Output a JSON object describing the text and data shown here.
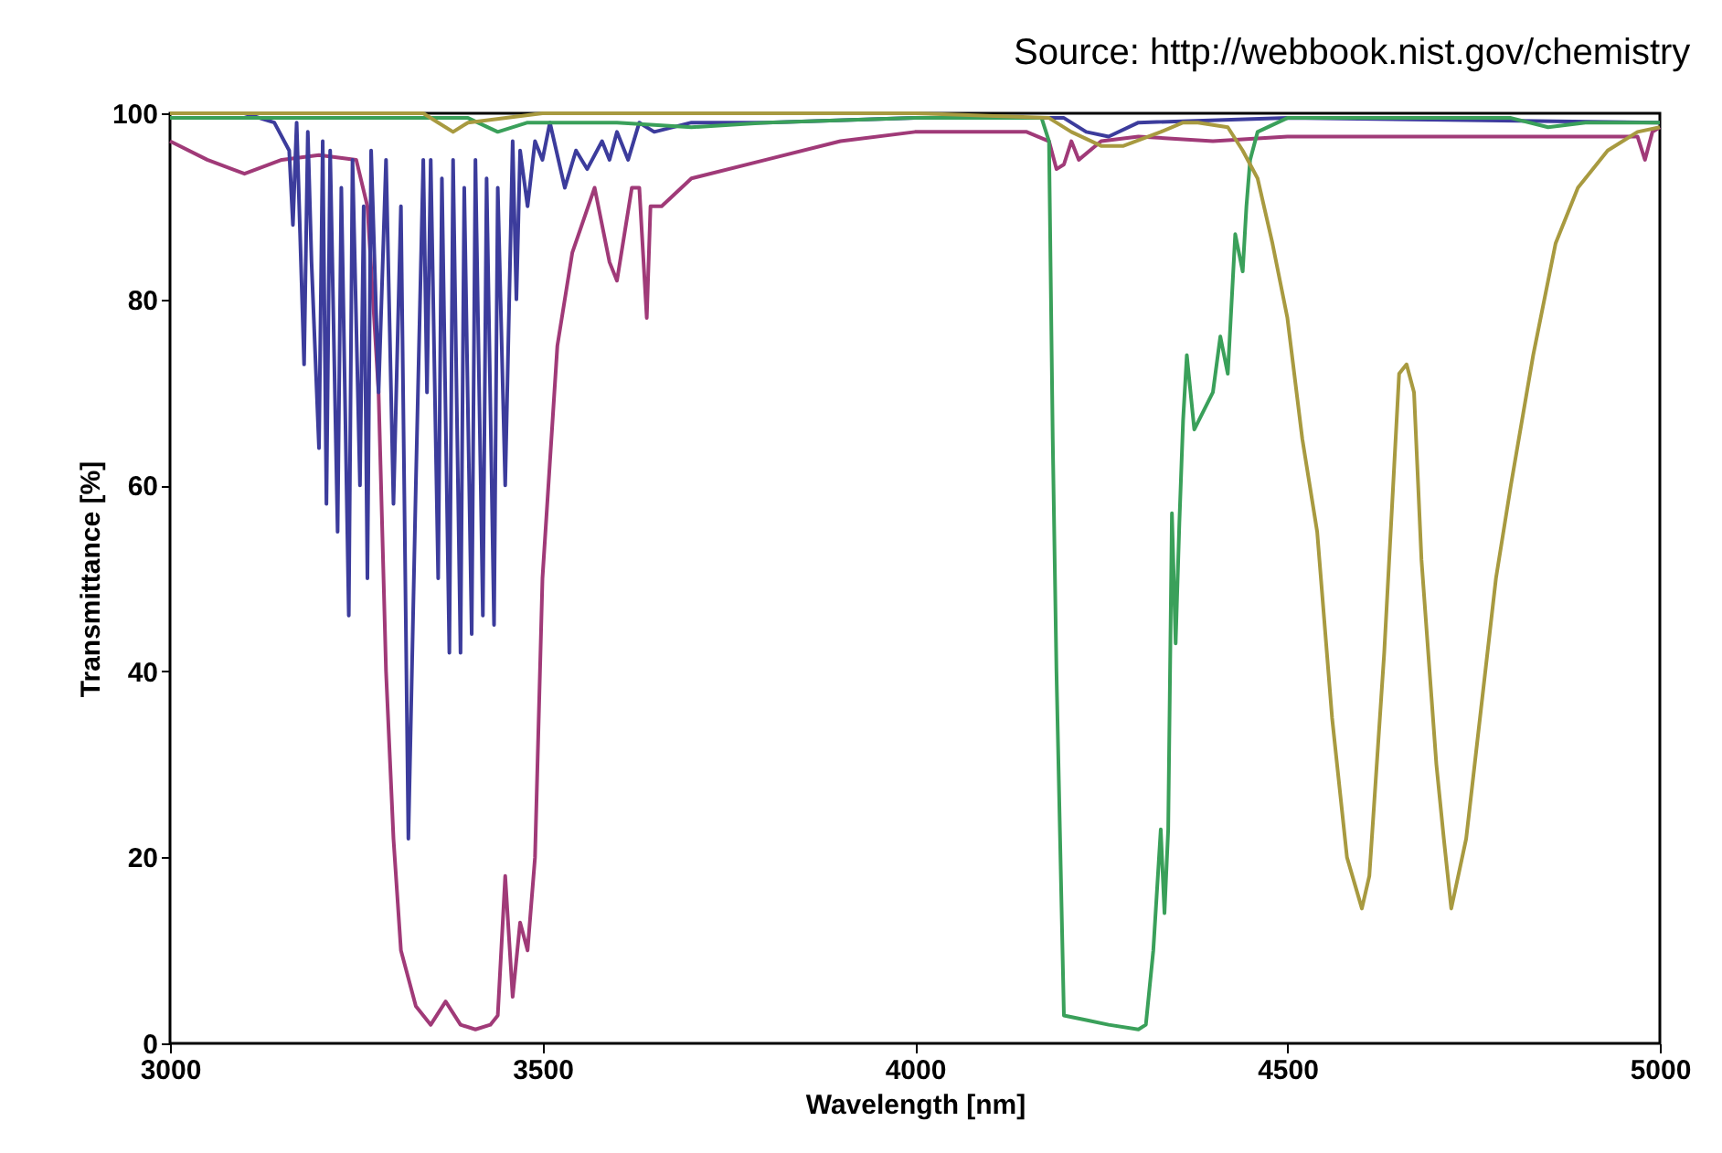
{
  "chart_data": {
    "type": "line",
    "xlabel": "Wavelength [nm]",
    "ylabel": "Transmittance  [%]",
    "annotations": [
      "Source: http://webbook.nist.gov/chemistry"
    ],
    "xlim": [
      3000,
      5000
    ],
    "xticks": [
      3000,
      3500,
      4000,
      4500,
      5000
    ],
    "ylim": [
      0,
      100
    ],
    "yticks": [
      0,
      20,
      40,
      60,
      80,
      100
    ],
    "grid": false,
    "legend": false,
    "marker": "none",
    "line_style": "solid",
    "series": [
      {
        "color": "#a03a78",
        "x": [
          3000,
          3050,
          3100,
          3150,
          3200,
          3250,
          3265,
          3280,
          3290,
          3300,
          3310,
          3330,
          3350,
          3370,
          3390,
          3410,
          3430,
          3440,
          3450,
          3460,
          3470,
          3480,
          3490,
          3500,
          3520,
          3540,
          3570,
          3590,
          3600,
          3620,
          3630,
          3640,
          3645,
          3660,
          3700,
          3800,
          3900,
          4000,
          4150,
          4180,
          4190,
          4200,
          4210,
          4220,
          4250,
          4300,
          4400,
          4500,
          4700,
          4900,
          4970,
          4980,
          4990,
          5000
        ],
        "values": [
          97,
          95,
          93.5,
          95,
          95.5,
          95,
          90,
          70,
          40,
          22,
          10,
          4,
          2,
          4.5,
          2,
          1.5,
          2,
          3,
          18,
          5,
          13,
          10,
          20,
          50,
          75,
          85,
          92,
          84,
          82,
          92,
          92,
          78,
          90,
          90,
          93,
          95,
          97,
          98,
          98,
          97,
          94,
          94.5,
          97,
          95,
          97,
          97.5,
          97,
          97.5,
          97.5,
          97.5,
          97.5,
          95,
          98,
          98.5
        ]
      },
      {
        "color": "#3c3c9c",
        "x": [
          3000,
          3100,
          3140,
          3160,
          3165,
          3170,
          3180,
          3185,
          3190,
          3200,
          3205,
          3210,
          3215,
          3225,
          3230,
          3240,
          3245,
          3255,
          3260,
          3265,
          3270,
          3280,
          3290,
          3300,
          3310,
          3320,
          3330,
          3340,
          3345,
          3350,
          3360,
          3365,
          3375,
          3380,
          3390,
          3395,
          3405,
          3410,
          3420,
          3425,
          3435,
          3440,
          3450,
          3460,
          3465,
          3470,
          3480,
          3490,
          3500,
          3510,
          3530,
          3545,
          3560,
          3580,
          3590,
          3600,
          3615,
          3630,
          3650,
          3700,
          3800,
          4000,
          4200,
          4230,
          4260,
          4300,
          4500,
          5000
        ],
        "values": [
          100,
          100,
          99,
          96,
          88,
          99,
          73,
          98,
          84,
          64,
          97,
          58,
          96,
          55,
          92,
          46,
          95,
          60,
          90,
          50,
          96,
          70,
          95,
          58,
          90,
          22,
          60,
          95,
          70,
          95,
          50,
          93,
          42,
          95,
          42,
          92,
          44,
          95,
          46,
          93,
          45,
          92,
          60,
          97,
          80,
          96,
          90,
          97,
          95,
          99,
          92,
          96,
          94,
          97,
          95,
          98,
          95,
          99,
          98,
          99,
          99,
          99.5,
          99.5,
          98,
          97.5,
          99,
          99.5,
          99
        ]
      },
      {
        "color": "#3aa05a",
        "x": [
          3000,
          3400,
          3440,
          3480,
          3600,
          3700,
          3800,
          4000,
          4170,
          4180,
          4185,
          4190,
          4200,
          4230,
          4260,
          4300,
          4310,
          4320,
          4330,
          4335,
          4340,
          4345,
          4350,
          4355,
          4360,
          4365,
          4375,
          4400,
          4410,
          4420,
          4430,
          4440,
          4445,
          4450,
          4460,
          4500,
          4800,
          4850,
          4900,
          5000
        ],
        "values": [
          99.5,
          99.5,
          98,
          99,
          99,
          98.5,
          99,
          99.5,
          99.5,
          97,
          65,
          40,
          3,
          2.5,
          2,
          1.5,
          2,
          10,
          23,
          14,
          23,
          57,
          43,
          56,
          67,
          74,
          66,
          70,
          76,
          72,
          87,
          83,
          90,
          95,
          98,
          99.5,
          99.5,
          98.5,
          99,
          99
        ]
      },
      {
        "color": "#a89a40",
        "x": [
          3000,
          3340,
          3360,
          3380,
          3400,
          3500,
          4000,
          4180,
          4210,
          4250,
          4280,
          4330,
          4360,
          4380,
          4420,
          4440,
          4460,
          4480,
          4500,
          4520,
          4540,
          4560,
          4580,
          4600,
          4610,
          4630,
          4650,
          4660,
          4670,
          4680,
          4700,
          4710,
          4720,
          4740,
          4760,
          4780,
          4800,
          4830,
          4860,
          4890,
          4930,
          4970,
          5000
        ],
        "values": [
          100,
          100,
          99,
          98,
          99,
          100,
          100,
          99.5,
          98,
          96.5,
          96.5,
          98,
          99,
          99,
          98.5,
          96,
          93,
          86,
          78,
          65,
          55,
          35,
          20,
          14.5,
          18,
          42,
          72,
          73,
          70,
          52,
          30,
          22,
          14.5,
          22,
          36,
          50,
          60,
          74,
          86,
          92,
          96,
          98,
          98.5
        ]
      }
    ]
  }
}
